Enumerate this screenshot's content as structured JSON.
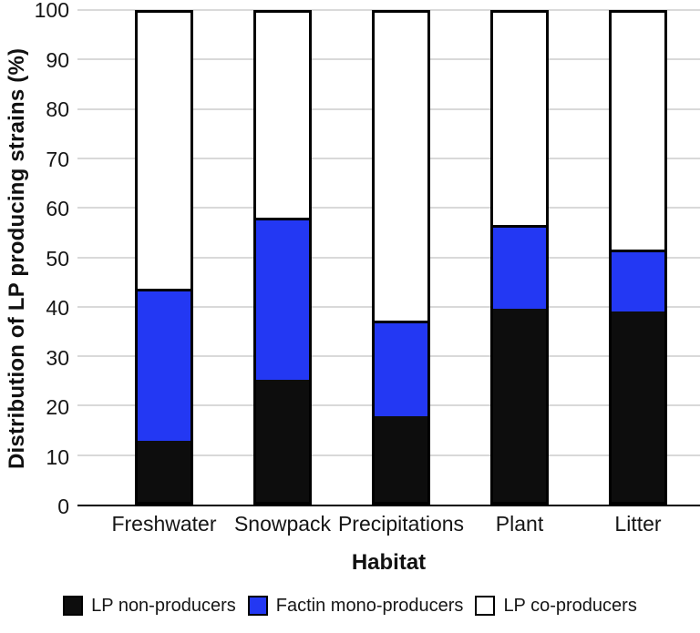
{
  "chart_data": {
    "type": "bar",
    "stacked": true,
    "title": "",
    "xlabel": "Habitat",
    "ylabel": "Distribution of LP producing strains (%)",
    "categories": [
      "Freshwater",
      "Snowpack",
      "Precipitations",
      "Plant",
      "Litter"
    ],
    "series": [
      {
        "name": "LP non-producers",
        "color": "#0d0d0d",
        "values": [
          12.5,
          25.0,
          17.5,
          39.5,
          39.0
        ]
      },
      {
        "name": "Factin mono-producers",
        "color": "#2338f3",
        "values": [
          30.5,
          32.5,
          19.0,
          16.5,
          12.0
        ]
      },
      {
        "name": "LP co-producers",
        "color": "#ffffff",
        "values": [
          57.0,
          42.5,
          63.5,
          44.0,
          49.0
        ]
      }
    ],
    "ylim": [
      0,
      100
    ],
    "ytick_step": 10,
    "grid": true,
    "grid_color": "#d9d9d9",
    "axis_color": "#000000",
    "legend_position": "bottom"
  }
}
